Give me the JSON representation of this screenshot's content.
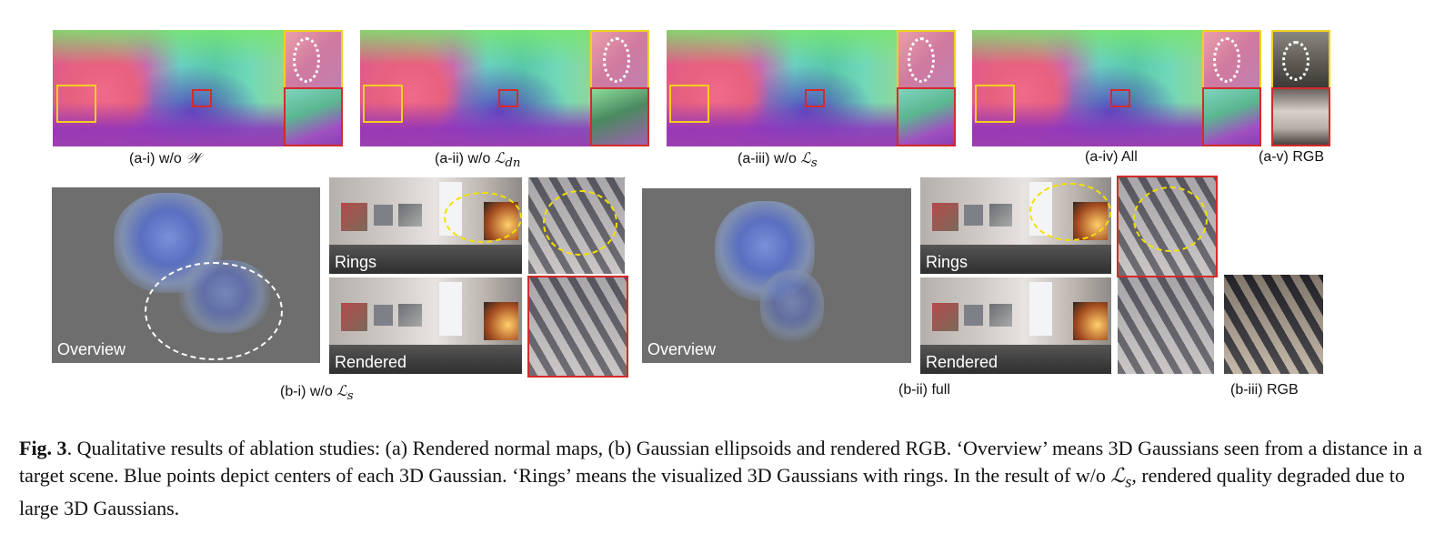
{
  "labels_a": [
    "(a-i) w/o",
    "(a-ii) w/o",
    "(a-iii) w/o",
    "(a-iv) All",
    "(a-v) RGB"
  ],
  "labels_a_math": [
    "𝒲",
    "ℒ",
    "dn",
    "ℒ",
    "s"
  ],
  "labels_b": [
    "(b-i) w/o",
    "(b-ii) full",
    "(b-iii) RGB"
  ],
  "labels_b_math": [
    "ℒ",
    "s"
  ],
  "overlay": {
    "overview": "Overview",
    "rings": "Rings",
    "rendered": "Rendered"
  },
  "caption": {
    "fig": "Fig. 3",
    "t1": ". Qualitative results of ablation studies: (a) Rendered normal maps, (b) Gaussian ellipsoids and rendered RGB. ‘Overview’ means 3D Gaussians seen from a distance in a target scene. Blue points depict centers of each 3D Gaussian. ‘Rings’ means the visualized 3D Gaussians with rings. In the result of w/o ",
    "math": "ℒ",
    "sub": "s",
    "t2": ", rendered quality degraded due to large 3D Gaussians."
  }
}
